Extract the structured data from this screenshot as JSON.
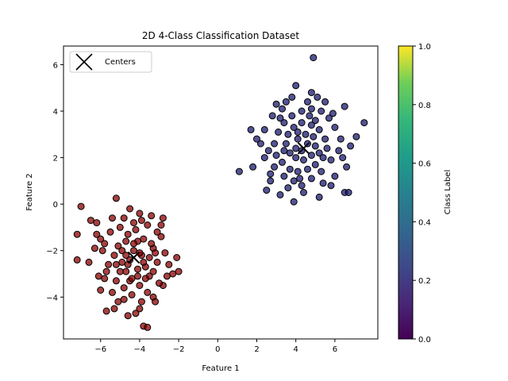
{
  "chart_data": {
    "type": "scatter",
    "title": "2D 4-Class Classification Dataset",
    "xlabel": "Feature 1",
    "ylabel": "Feature 2",
    "xlim": [
      -7.9,
      8.2
    ],
    "ylim": [
      -5.8,
      6.8
    ],
    "xticks": [
      -6,
      -4,
      -2,
      0,
      2,
      4,
      6
    ],
    "yticks": [
      -4,
      -2,
      0,
      2,
      4,
      6
    ],
    "xtick_labels": [
      "−6",
      "−4",
      "−2",
      "0",
      "2",
      "4",
      "6"
    ],
    "ytick_labels": [
      "−4",
      "−2",
      "0",
      "2",
      "4",
      "6"
    ],
    "grid": false,
    "legend": {
      "position": "upper-left",
      "entries": [
        "Centers"
      ]
    },
    "colorbar": {
      "label": "Class Label",
      "range": [
        0.0,
        1.0
      ],
      "ticks": [
        0.0,
        0.2,
        0.4,
        0.6,
        0.8,
        1.0
      ],
      "tick_labels": [
        "0.0",
        "0.2",
        "0.4",
        "0.6",
        "0.8",
        "1.0"
      ],
      "colormap": "viridis"
    },
    "series": [
      {
        "color": "#8b0000",
        "approx_center": [
          -4.3,
          -2.3
        ],
        "points": [
          [
            -7.0,
            -0.1
          ],
          [
            -7.2,
            -1.3
          ],
          [
            -7.2,
            -2.4
          ],
          [
            -6.5,
            -0.7
          ],
          [
            -6.2,
            -0.8
          ],
          [
            -6.0,
            -3.7
          ],
          [
            -5.7,
            -4.6
          ],
          [
            -5.3,
            -4.5
          ],
          [
            -5.2,
            0.25
          ],
          [
            -4.8,
            -0.6
          ],
          [
            -4.5,
            -0.2
          ],
          [
            -4.0,
            -0.4
          ],
          [
            -3.9,
            -0.7
          ],
          [
            -3.6,
            -0.9
          ],
          [
            -3.4,
            -0.5
          ],
          [
            -2.8,
            -0.6
          ],
          [
            -2.1,
            -2.3
          ],
          [
            -2.0,
            -2.9
          ],
          [
            -2.3,
            -3.0
          ],
          [
            -2.8,
            -3.5
          ],
          [
            -3.3,
            -4.0
          ],
          [
            -4.0,
            -4.5
          ],
          [
            -4.6,
            -4.8
          ],
          [
            -4.2,
            -4.7
          ],
          [
            -3.8,
            -5.25
          ],
          [
            -3.6,
            -5.3
          ],
          [
            -3.2,
            -4.2
          ],
          [
            -5.8,
            -3.2
          ],
          [
            -6.0,
            -1.5
          ],
          [
            -5.5,
            -1.2
          ],
          [
            -5.1,
            -1.8
          ],
          [
            -4.9,
            -2.5
          ],
          [
            -4.7,
            -2.9
          ],
          [
            -4.5,
            -3.3
          ],
          [
            -4.3,
            -2.0
          ],
          [
            -4.1,
            -1.6
          ],
          [
            -3.9,
            -2.2
          ],
          [
            -3.7,
            -2.7
          ],
          [
            -3.5,
            -3.1
          ],
          [
            -3.3,
            -1.9
          ],
          [
            -3.1,
            -2.5
          ],
          [
            -2.9,
            -1.4
          ],
          [
            -2.7,
            -2.1
          ],
          [
            -2.5,
            -2.6
          ],
          [
            -5.3,
            -2.2
          ],
          [
            -5.6,
            -2.6
          ],
          [
            -5.9,
            -2.0
          ],
          [
            -6.3,
            -1.9
          ],
          [
            -6.6,
            -2.5
          ],
          [
            -4.8,
            -3.6
          ],
          [
            -4.4,
            -3.9
          ],
          [
            -4.0,
            -3.5
          ],
          [
            -3.6,
            -3.8
          ],
          [
            -5.2,
            -3.3
          ],
          [
            -4.6,
            -1.3
          ],
          [
            -4.2,
            -1.1
          ],
          [
            -3.8,
            -1.5
          ],
          [
            -3.4,
            -1.7
          ],
          [
            -5.0,
            -1.0
          ],
          [
            -5.4,
            -0.6
          ],
          [
            -4.9,
            -2.0
          ],
          [
            -4.5,
            -2.4
          ],
          [
            -4.1,
            -2.8
          ],
          [
            -3.7,
            -3.2
          ],
          [
            -4.6,
            -2.6
          ],
          [
            -4.0,
            -2.1
          ],
          [
            -3.3,
            -2.9
          ],
          [
            -5.0,
            -2.9
          ],
          [
            -5.7,
            -2.9
          ],
          [
            -6.1,
            -3.1
          ],
          [
            -4.8,
            -4.1
          ],
          [
            -3.0,
            -3.4
          ],
          [
            -2.6,
            -3.1
          ],
          [
            -2.9,
            -0.9
          ],
          [
            -3.1,
            -1.2
          ],
          [
            -6.2,
            -1.3
          ],
          [
            -5.8,
            -1.7
          ],
          [
            -4.3,
            -0.8
          ],
          [
            -4.7,
            -1.6
          ],
          [
            -3.9,
            -4.2
          ],
          [
            -5.4,
            -3.8
          ],
          [
            -5.1,
            -4.2
          ],
          [
            -4.4,
            -3.2
          ],
          [
            -4.1,
            -3.1
          ],
          [
            -3.8,
            -2.5
          ],
          [
            -4.7,
            -2.2
          ],
          [
            -5.2,
            -2.6
          ],
          [
            -4.3,
            -1.7
          ],
          [
            -3.5,
            -2.3
          ],
          [
            -3.2,
            -2.1
          ]
        ]
      },
      {
        "color": "#191970",
        "approx_center": [
          4.4,
          2.4
        ],
        "points": [
          [
            1.1,
            1.4
          ],
          [
            1.7,
            3.2
          ],
          [
            1.8,
            1.6
          ],
          [
            2.5,
            0.6
          ],
          [
            2.7,
            1.0
          ],
          [
            3.2,
            0.4
          ],
          [
            3.9,
            0.1
          ],
          [
            4.4,
            0.5
          ],
          [
            5.2,
            0.3
          ],
          [
            5.8,
            0.8
          ],
          [
            6.5,
            0.5
          ],
          [
            6.7,
            0.5
          ],
          [
            6.6,
            1.6
          ],
          [
            7.1,
            2.9
          ],
          [
            7.5,
            3.5
          ],
          [
            6.5,
            4.2
          ],
          [
            5.5,
            4.4
          ],
          [
            5.1,
            4.6
          ],
          [
            4.8,
            4.8
          ],
          [
            4.9,
            6.3
          ],
          [
            4.0,
            5.1
          ],
          [
            3.5,
            4.4
          ],
          [
            3.0,
            4.3
          ],
          [
            2.8,
            3.8
          ],
          [
            2.4,
            3.2
          ],
          [
            2.2,
            2.6
          ],
          [
            2.4,
            2.0
          ],
          [
            2.9,
            1.6
          ],
          [
            3.4,
            1.2
          ],
          [
            3.9,
            1.0
          ],
          [
            4.3,
            0.8
          ],
          [
            4.8,
            1.1
          ],
          [
            5.3,
            1.4
          ],
          [
            5.8,
            1.9
          ],
          [
            6.2,
            2.3
          ],
          [
            6.3,
            2.8
          ],
          [
            6.0,
            3.3
          ],
          [
            5.7,
            3.7
          ],
          [
            5.3,
            4.0
          ],
          [
            4.8,
            4.1
          ],
          [
            4.3,
            4.0
          ],
          [
            3.8,
            3.8
          ],
          [
            3.4,
            3.5
          ],
          [
            3.1,
            3.1
          ],
          [
            2.9,
            2.6
          ],
          [
            3.0,
            2.1
          ],
          [
            3.3,
            1.8
          ],
          [
            3.7,
            1.5
          ],
          [
            4.1,
            1.4
          ],
          [
            4.6,
            1.5
          ],
          [
            5.0,
            1.7
          ],
          [
            5.4,
            2.0
          ],
          [
            5.6,
            2.4
          ],
          [
            5.5,
            2.8
          ],
          [
            5.2,
            3.2
          ],
          [
            4.8,
            3.4
          ],
          [
            4.3,
            3.5
          ],
          [
            3.9,
            3.3
          ],
          [
            3.6,
            3.0
          ],
          [
            3.5,
            2.6
          ],
          [
            3.7,
            2.2
          ],
          [
            4.0,
            2.0
          ],
          [
            4.4,
            1.9
          ],
          [
            4.8,
            2.1
          ],
          [
            5.0,
            2.5
          ],
          [
            4.9,
            2.9
          ],
          [
            4.5,
            3.0
          ],
          [
            4.1,
            2.8
          ],
          [
            4.0,
            2.4
          ],
          [
            4.3,
            2.3
          ],
          [
            4.6,
            2.6
          ],
          [
            3.2,
            3.7
          ],
          [
            2.7,
            1.3
          ],
          [
            6.0,
            1.2
          ],
          [
            5.9,
            3.9
          ],
          [
            4.6,
            4.4
          ],
          [
            3.3,
            4.1
          ],
          [
            2.6,
            2.3
          ],
          [
            6.4,
            2.0
          ],
          [
            4.2,
            1.1
          ],
          [
            3.6,
            0.7
          ],
          [
            5.4,
            0.9
          ],
          [
            6.8,
            2.5
          ],
          [
            2.0,
            2.8
          ],
          [
            4.7,
            3.8
          ],
          [
            3.8,
            4.6
          ],
          [
            5.0,
            3.6
          ],
          [
            4.1,
            3.1
          ],
          [
            3.4,
            2.3
          ],
          [
            5.2,
            2.2
          ]
        ]
      }
    ],
    "centers": [
      [
        -4.3,
        -2.3
      ],
      [
        4.4,
        2.4
      ]
    ]
  }
}
